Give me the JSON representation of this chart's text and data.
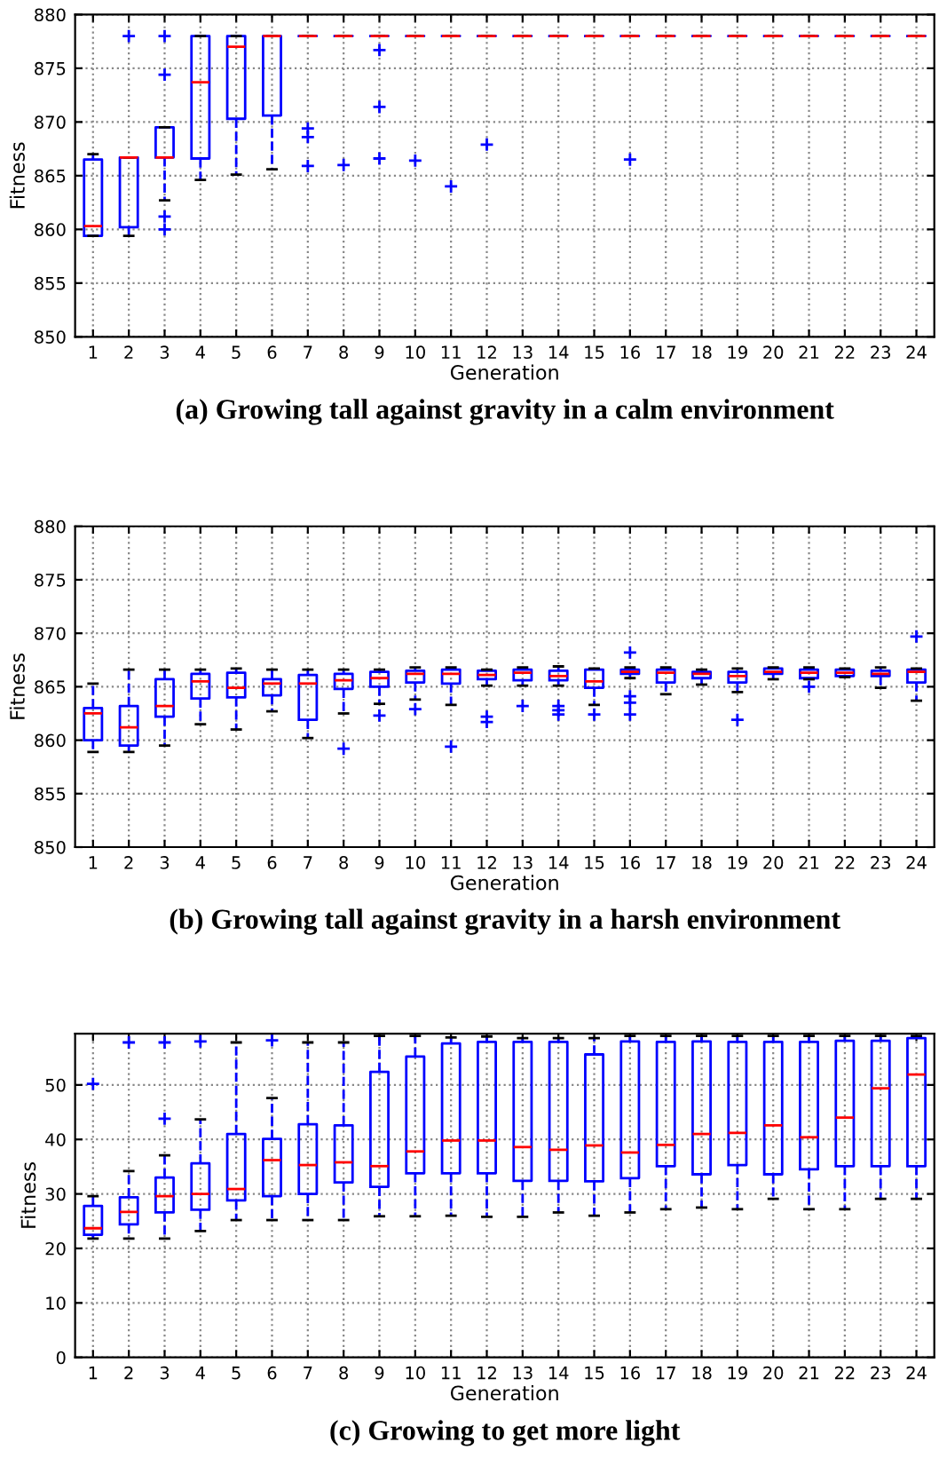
{
  "chart_data": [
    {
      "type": "box",
      "title": "(a) Growing tall against gravity in a calm environment",
      "xlabel": "Generation",
      "ylabel": "Fitness",
      "color": "#0000ff",
      "grid": true,
      "categories": [
        "1",
        "2",
        "3",
        "4",
        "5",
        "6",
        "7",
        "8",
        "9",
        "10",
        "11",
        "12",
        "13",
        "14",
        "15",
        "16",
        "17",
        "18",
        "19",
        "20",
        "21",
        "22",
        "23",
        "24"
      ],
      "ylim": [
        850,
        880
      ],
      "yticks": [
        850,
        855,
        860,
        865,
        870,
        875,
        880
      ],
      "boxes": [
        {
          "low": 859.4,
          "q1": 859.4,
          "median": 860.3,
          "q3": 866.5,
          "high": 867.0
        },
        {
          "low": 859.4,
          "q1": 860.2,
          "median": 866.7,
          "q3": 866.7,
          "high": 866.7,
          "outliers": [
            878
          ]
        },
        {
          "low": 862.7,
          "q1": 866.7,
          "median": 866.7,
          "q3": 869.5,
          "high": 869.5,
          "outliers": [
            878,
            874.4,
            861.2,
            860.0
          ]
        },
        {
          "low": 864.6,
          "q1": 866.6,
          "median": 873.7,
          "q3": 878,
          "high": 878
        },
        {
          "low": 865.1,
          "q1": 870.3,
          "median": 877.0,
          "q3": 878,
          "high": 878
        },
        {
          "low": 865.6,
          "q1": 870.6,
          "median": 878,
          "q3": 878,
          "high": 878
        },
        {
          "low": 878,
          "q1": 878,
          "median": 878,
          "q3": 878,
          "high": 878,
          "outliers": [
            869.4,
            868.6,
            865.9
          ]
        },
        {
          "low": 878,
          "q1": 878,
          "median": 878,
          "q3": 878,
          "high": 878,
          "outliers": [
            866.0
          ]
        },
        {
          "low": 878,
          "q1": 878,
          "median": 878,
          "q3": 878,
          "high": 878,
          "outliers": [
            876.7,
            871.4,
            866.6
          ]
        },
        {
          "low": 878,
          "q1": 878,
          "median": 878,
          "q3": 878,
          "high": 878,
          "outliers": [
            866.4
          ]
        },
        {
          "low": 878,
          "q1": 878,
          "median": 878,
          "q3": 878,
          "high": 878,
          "outliers": [
            864.0
          ]
        },
        {
          "low": 878,
          "q1": 878,
          "median": 878,
          "q3": 878,
          "high": 878,
          "outliers": [
            867.9
          ]
        },
        {
          "low": 878,
          "q1": 878,
          "median": 878,
          "q3": 878,
          "high": 878
        },
        {
          "low": 878,
          "q1": 878,
          "median": 878,
          "q3": 878,
          "high": 878
        },
        {
          "low": 878,
          "q1": 878,
          "median": 878,
          "q3": 878,
          "high": 878
        },
        {
          "low": 878,
          "q1": 878,
          "median": 878,
          "q3": 878,
          "high": 878,
          "outliers": [
            866.5
          ]
        },
        {
          "low": 878,
          "q1": 878,
          "median": 878,
          "q3": 878,
          "high": 878
        },
        {
          "low": 878,
          "q1": 878,
          "median": 878,
          "q3": 878,
          "high": 878
        },
        {
          "low": 878,
          "q1": 878,
          "median": 878,
          "q3": 878,
          "high": 878
        },
        {
          "low": 878,
          "q1": 878,
          "median": 878,
          "q3": 878,
          "high": 878
        },
        {
          "low": 878,
          "q1": 878,
          "median": 878,
          "q3": 878,
          "high": 878
        },
        {
          "low": 878,
          "q1": 878,
          "median": 878,
          "q3": 878,
          "high": 878
        },
        {
          "low": 878,
          "q1": 878,
          "median": 878,
          "q3": 878,
          "high": 878
        },
        {
          "low": 878,
          "q1": 878,
          "median": 878,
          "q3": 878,
          "high": 878
        }
      ]
    },
    {
      "type": "box",
      "title": "(b) Growing tall against gravity in a harsh environment",
      "xlabel": "Generation",
      "ylabel": "Fitness",
      "color": "#0000ff",
      "grid": true,
      "categories": [
        "1",
        "2",
        "3",
        "4",
        "5",
        "6",
        "7",
        "8",
        "9",
        "10",
        "11",
        "12",
        "13",
        "14",
        "15",
        "16",
        "17",
        "18",
        "19",
        "20",
        "21",
        "22",
        "23",
        "24"
      ],
      "ylim": [
        850,
        880
      ],
      "yticks": [
        850,
        855,
        860,
        865,
        870,
        875,
        880
      ],
      "boxes": [
        {
          "low": 858.9,
          "q1": 860.0,
          "median": 862.5,
          "q3": 863.0,
          "high": 865.3
        },
        {
          "low": 858.9,
          "q1": 859.5,
          "median": 861.2,
          "q3": 863.2,
          "high": 866.6
        },
        {
          "low": 859.5,
          "q1": 862.2,
          "median": 863.2,
          "q3": 865.7,
          "high": 866.6
        },
        {
          "low": 861.5,
          "q1": 863.9,
          "median": 865.5,
          "q3": 866.2,
          "high": 866.6
        },
        {
          "low": 861.0,
          "q1": 864.0,
          "median": 864.9,
          "q3": 866.3,
          "high": 866.7
        },
        {
          "low": 862.7,
          "q1": 864.2,
          "median": 865.3,
          "q3": 865.7,
          "high": 866.6
        },
        {
          "low": 860.2,
          "q1": 861.9,
          "median": 865.3,
          "q3": 866.1,
          "high": 866.6
        },
        {
          "low": 862.5,
          "q1": 864.8,
          "median": 865.6,
          "q3": 866.2,
          "high": 866.6,
          "outliers": [
            859.2
          ]
        },
        {
          "low": 863.4,
          "q1": 865.0,
          "median": 865.8,
          "q3": 866.4,
          "high": 866.6,
          "outliers": [
            862.3
          ]
        },
        {
          "low": 863.8,
          "q1": 865.4,
          "median": 866.2,
          "q3": 866.5,
          "high": 866.8,
          "outliers": [
            862.9
          ]
        },
        {
          "low": 863.3,
          "q1": 865.3,
          "median": 866.2,
          "q3": 866.6,
          "high": 866.8,
          "outliers": [
            859.4
          ]
        },
        {
          "low": 865.1,
          "q1": 865.7,
          "median": 866.1,
          "q3": 866.5,
          "high": 866.6,
          "outliers": [
            862.2,
            861.7
          ]
        },
        {
          "low": 865.1,
          "q1": 865.6,
          "median": 866.3,
          "q3": 866.6,
          "high": 866.8,
          "outliers": [
            863.2
          ]
        },
        {
          "low": 865.1,
          "q1": 865.6,
          "median": 866.0,
          "q3": 866.5,
          "high": 866.9,
          "outliers": [
            863.2,
            862.8,
            862.4
          ]
        },
        {
          "low": 863.3,
          "q1": 864.9,
          "median": 865.5,
          "q3": 866.6,
          "high": 866.7,
          "outliers": [
            862.4
          ]
        },
        {
          "low": 865.8,
          "q1": 866.2,
          "median": 866.4,
          "q3": 866.6,
          "high": 866.8,
          "outliers": [
            868.2,
            864.1,
            863.5,
            862.4
          ]
        },
        {
          "low": 864.3,
          "q1": 865.4,
          "median": 866.3,
          "q3": 866.6,
          "high": 866.8
        },
        {
          "low": 865.2,
          "q1": 865.8,
          "median": 866.2,
          "q3": 866.4,
          "high": 866.6
        },
        {
          "low": 864.5,
          "q1": 865.4,
          "median": 866.0,
          "q3": 866.4,
          "high": 866.7,
          "outliers": [
            861.9
          ]
        },
        {
          "low": 865.7,
          "q1": 866.2,
          "median": 866.4,
          "q3": 866.7,
          "high": 866.8
        },
        {
          "low": 865.7,
          "q1": 865.8,
          "median": 866.3,
          "q3": 866.6,
          "high": 866.8,
          "outliers": [
            865.0
          ]
        },
        {
          "low": 865.9,
          "q1": 866.0,
          "median": 866.3,
          "q3": 866.6,
          "high": 866.7
        },
        {
          "low": 864.9,
          "q1": 866.0,
          "median": 866.2,
          "q3": 866.5,
          "high": 866.8
        },
        {
          "low": 863.7,
          "q1": 865.4,
          "median": 866.4,
          "q3": 866.6,
          "high": 866.7,
          "outliers": [
            869.7
          ]
        }
      ]
    },
    {
      "type": "box",
      "title": "(c) Growing to get more light",
      "xlabel": "Generation",
      "ylabel": "Fitness",
      "color": "#0000ff",
      "grid": true,
      "categories": [
        "1",
        "2",
        "3",
        "4",
        "5",
        "6",
        "7",
        "8",
        "9",
        "10",
        "11",
        "12",
        "13",
        "14",
        "15",
        "16",
        "17",
        "18",
        "19",
        "20",
        "21",
        "22",
        "23",
        "24"
      ],
      "ylim": [
        0,
        59.4
      ],
      "yticks": [
        0,
        10,
        20,
        30,
        40,
        50
      ],
      "boxes": [
        {
          "low": 21.8,
          "q1": 22.5,
          "median": 23.7,
          "q3": 27.8,
          "high": 29.6,
          "outliers": [
            50.2
          ]
        },
        {
          "low": 21.8,
          "q1": 24.4,
          "median": 26.7,
          "q3": 29.4,
          "high": 34.2,
          "outliers": [
            57.8
          ]
        },
        {
          "low": 21.8,
          "q1": 26.6,
          "median": 29.6,
          "q3": 33.0,
          "high": 37.1,
          "outliers": [
            43.8,
            57.8
          ]
        },
        {
          "low": 23.2,
          "q1": 27.1,
          "median": 30.0,
          "q3": 35.6,
          "high": 43.7,
          "outliers": [
            58.0
          ]
        },
        {
          "low": 25.2,
          "q1": 28.8,
          "median": 30.9,
          "q3": 41.0,
          "high": 57.8
        },
        {
          "low": 25.2,
          "q1": 29.6,
          "median": 36.2,
          "q3": 40.1,
          "high": 47.6,
          "outliers": [
            58.2
          ]
        },
        {
          "low": 25.2,
          "q1": 30.0,
          "median": 35.3,
          "q3": 42.8,
          "high": 57.8
        },
        {
          "low": 25.2,
          "q1": 32.1,
          "median": 35.8,
          "q3": 42.6,
          "high": 57.8
        },
        {
          "low": 25.9,
          "q1": 31.3,
          "median": 35.1,
          "q3": 52.4,
          "high": 59.0
        },
        {
          "low": 25.9,
          "q1": 33.8,
          "median": 37.8,
          "q3": 55.2,
          "high": 59.0
        },
        {
          "low": 26.0,
          "q1": 33.8,
          "median": 39.8,
          "q3": 57.6,
          "high": 58.7
        },
        {
          "low": 25.8,
          "q1": 33.8,
          "median": 39.8,
          "q3": 57.9,
          "high": 58.9
        },
        {
          "low": 25.8,
          "q1": 32.4,
          "median": 38.6,
          "q3": 57.9,
          "high": 58.6
        },
        {
          "low": 26.6,
          "q1": 32.4,
          "median": 38.1,
          "q3": 57.9,
          "high": 58.6
        },
        {
          "low": 26.0,
          "q1": 32.3,
          "median": 38.9,
          "q3": 55.6,
          "high": 58.6
        },
        {
          "low": 26.6,
          "q1": 32.9,
          "median": 37.6,
          "q3": 58.0,
          "high": 59.0
        },
        {
          "low": 27.2,
          "q1": 35.1,
          "median": 39.0,
          "q3": 57.9,
          "high": 59.0
        },
        {
          "low": 27.5,
          "q1": 33.6,
          "median": 41.0,
          "q3": 58.0,
          "high": 59.0
        },
        {
          "low": 27.2,
          "q1": 35.3,
          "median": 41.2,
          "q3": 57.9,
          "high": 59.0
        },
        {
          "low": 29.1,
          "q1": 33.6,
          "median": 42.6,
          "q3": 57.9,
          "high": 59.0
        },
        {
          "low": 27.2,
          "q1": 34.5,
          "median": 40.4,
          "q3": 57.9,
          "high": 59.0
        },
        {
          "low": 27.2,
          "q1": 35.1,
          "median": 44.0,
          "q3": 58.1,
          "high": 59.0
        },
        {
          "low": 29.1,
          "q1": 35.1,
          "median": 49.4,
          "q3": 58.1,
          "high": 59.0
        },
        {
          "low": 29.1,
          "q1": 35.1,
          "median": 51.9,
          "q3": 58.6,
          "high": 59.0
        }
      ]
    }
  ]
}
